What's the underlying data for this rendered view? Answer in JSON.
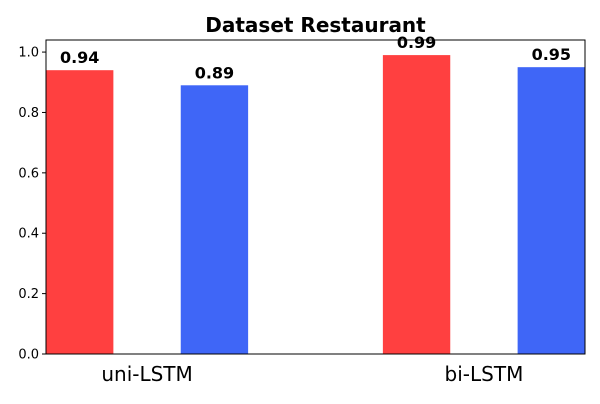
{
  "chart_data": {
    "type": "bar",
    "title": "Dataset Restaurant",
    "xlabel": "",
    "ylabel": "",
    "categories": [
      "uni-LSTM",
      "bi-LSTM"
    ],
    "series": [
      {
        "values": [
          0.94,
          0.99
        ],
        "color": "#ff4040"
      },
      {
        "values": [
          0.89,
          0.95
        ],
        "color": "#3f66f7"
      }
    ],
    "data_labels": [
      [
        "0.94",
        "0.99"
      ],
      [
        "0.89",
        "0.95"
      ]
    ],
    "ylim": [
      0,
      1.04
    ],
    "yticks": [
      0.0,
      0.2,
      0.4,
      0.6,
      0.8,
      1.0
    ],
    "ytick_labels": [
      "0.0",
      "0.2",
      "0.4",
      "0.6",
      "0.8",
      "1.0"
    ],
    "grid": false,
    "legend": "none"
  }
}
